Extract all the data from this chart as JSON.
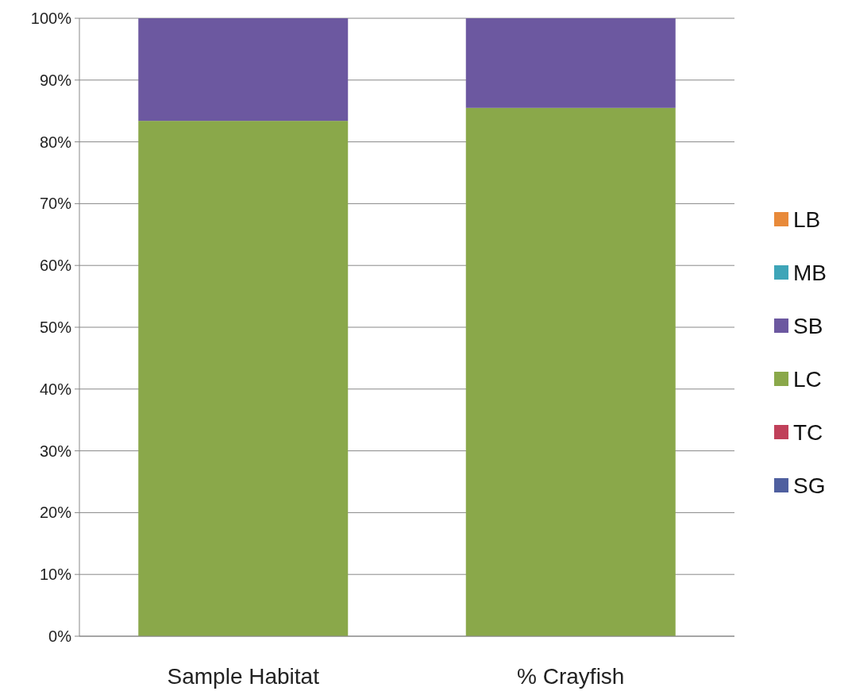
{
  "chart_data": {
    "type": "bar",
    "stacked": true,
    "categories": [
      "Sample Habitat",
      "% Crayfish"
    ],
    "series": [
      {
        "name": "SG",
        "color": "#4f5f9f",
        "values": [
          0,
          0
        ]
      },
      {
        "name": "TC",
        "color": "#c0405a",
        "values": [
          0,
          0
        ]
      },
      {
        "name": "LC",
        "color": "#8aa84a",
        "values": [
          83.4,
          85.5
        ]
      },
      {
        "name": "SB",
        "color": "#6c58a0",
        "values": [
          16.6,
          14.5
        ]
      },
      {
        "name": "MB",
        "color": "#3ea5b8",
        "values": [
          0,
          0
        ]
      },
      {
        "name": "LB",
        "color": "#e88a3a",
        "values": [
          0,
          0
        ]
      }
    ],
    "ylim": [
      0,
      100
    ],
    "yticks": [
      {
        "value": 0,
        "label": "0%"
      },
      {
        "value": 10,
        "label": "10%"
      },
      {
        "value": 20,
        "label": "20%"
      },
      {
        "value": 30,
        "label": "30%"
      },
      {
        "value": 40,
        "label": "40%"
      },
      {
        "value": 50,
        "label": "50%"
      },
      {
        "value": 60,
        "label": "60%"
      },
      {
        "value": 70,
        "label": "70%"
      },
      {
        "value": 80,
        "label": "80%"
      },
      {
        "value": 90,
        "label": "90%"
      },
      {
        "value": 100,
        "label": "100%"
      }
    ],
    "grid": "y",
    "legend": "right"
  }
}
